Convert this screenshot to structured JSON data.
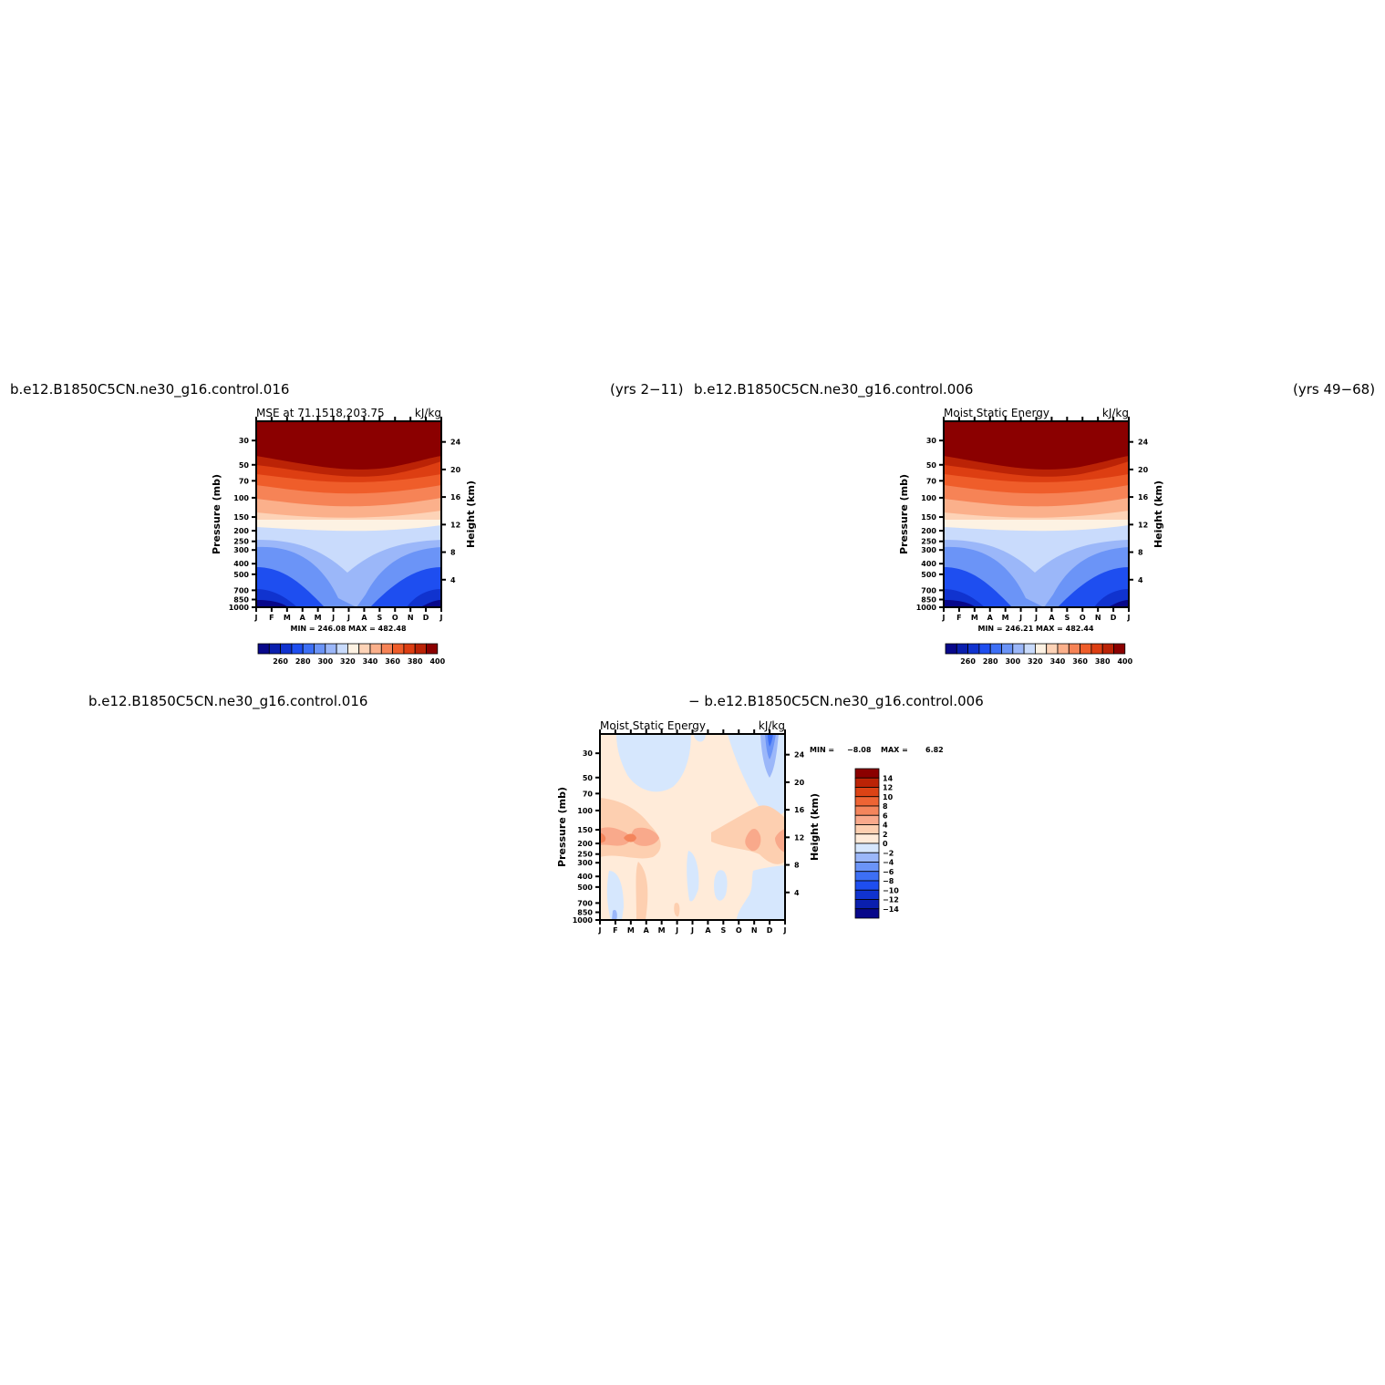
{
  "header": {
    "case_a": "b.e12.B1850C5CN.ne30_g16.control.016",
    "years_a": "(yrs 2−11)",
    "case_b": "b.e12.B1850C5CN.ne30_g16.control.006",
    "years_b": "(yrs 49−68)",
    "diff_a": "b.e12.B1850C5CN.ne30_g16.control.016",
    "diff_b": "− b.e12.B1850C5CN.ne30_g16.control.006"
  },
  "colors": {
    "mse_palette": [
      "#08088a",
      "#0a1fae",
      "#1033cf",
      "#1e4ef0",
      "#3d6ff5",
      "#6b94f7",
      "#9bb7f9",
      "#c9dbfc",
      "#fdf2e3",
      "#fdd3b7",
      "#fbb08b",
      "#f68356",
      "#ef5d2a",
      "#dd3e12",
      "#bb2306",
      "#8b0000"
    ],
    "diff_palette": [
      "#08088a",
      "#0a1fae",
      "#1033cf",
      "#1e4ef0",
      "#3d6ff5",
      "#6b94f7",
      "#9bb7f9",
      "#d6e7fd",
      "#ffebd9",
      "#fdcfb0",
      "#f9a98b",
      "#f4855c",
      "#ee6434",
      "#dc4315",
      "#bb2306",
      "#8b0000"
    ]
  },
  "chart_data": [
    {
      "type": "heatmap",
      "title": "MSE at 71.1518,203.75",
      "units": "kJ/kg",
      "x": [
        "J",
        "F",
        "M",
        "A",
        "M",
        "J",
        "J",
        "A",
        "S",
        "O",
        "N",
        "D",
        "J"
      ],
      "ylabel": "Pressure (mb)",
      "y_ticks": [
        "30",
        "50",
        "70",
        "100",
        "150",
        "200",
        "250",
        "300",
        "400",
        "500",
        "700",
        "850",
        "1000"
      ],
      "y2label": "Height (km)",
      "y2_ticks": [
        "24",
        "20",
        "16",
        "12",
        "8",
        "4"
      ],
      "stats": "MIN = 246.08 MAX = 482.48",
      "colorbar_labels": [
        "260",
        "280",
        "300",
        "320",
        "340",
        "360",
        "380",
        "400"
      ]
    },
    {
      "type": "heatmap",
      "title": "Moist Static Energy",
      "units": "kJ/kg",
      "x": [
        "J",
        "F",
        "M",
        "A",
        "M",
        "J",
        "J",
        "A",
        "S",
        "O",
        "N",
        "D",
        "J"
      ],
      "ylabel": "Pressure (mb)",
      "y_ticks": [
        "30",
        "50",
        "70",
        "100",
        "150",
        "200",
        "250",
        "300",
        "400",
        "500",
        "700",
        "850",
        "1000"
      ],
      "y2label": "Height (km)",
      "y2_ticks": [
        "24",
        "20",
        "16",
        "12",
        "8",
        "4"
      ],
      "stats": "MIN = 246.21 MAX = 482.44",
      "colorbar_labels": [
        "260",
        "280",
        "300",
        "320",
        "340",
        "360",
        "380",
        "400"
      ]
    },
    {
      "type": "heatmap",
      "title": "Moist Static Energy",
      "units": "kJ/kg",
      "x": [
        "J",
        "F",
        "M",
        "A",
        "M",
        "J",
        "J",
        "A",
        "S",
        "O",
        "N",
        "D",
        "J"
      ],
      "ylabel": "Pressure (mb)",
      "y_ticks": [
        "30",
        "50",
        "70",
        "100",
        "150",
        "200",
        "250",
        "300",
        "400",
        "500",
        "700",
        "850",
        "1000"
      ],
      "y2label": "Height (km)",
      "y2_ticks": [
        "24",
        "20",
        "16",
        "12",
        "8",
        "4"
      ],
      "stats_min_label": "MIN =",
      "stats_min": "−8.08",
      "stats_max_label": "MAX =",
      "stats_max": "6.82",
      "colorbar_labels": [
        "14",
        "12",
        "10",
        "8",
        "6",
        "4",
        "2",
        "0",
        "−2",
        "−4",
        "−6",
        "−8",
        "−10",
        "−12",
        "−14"
      ]
    }
  ]
}
